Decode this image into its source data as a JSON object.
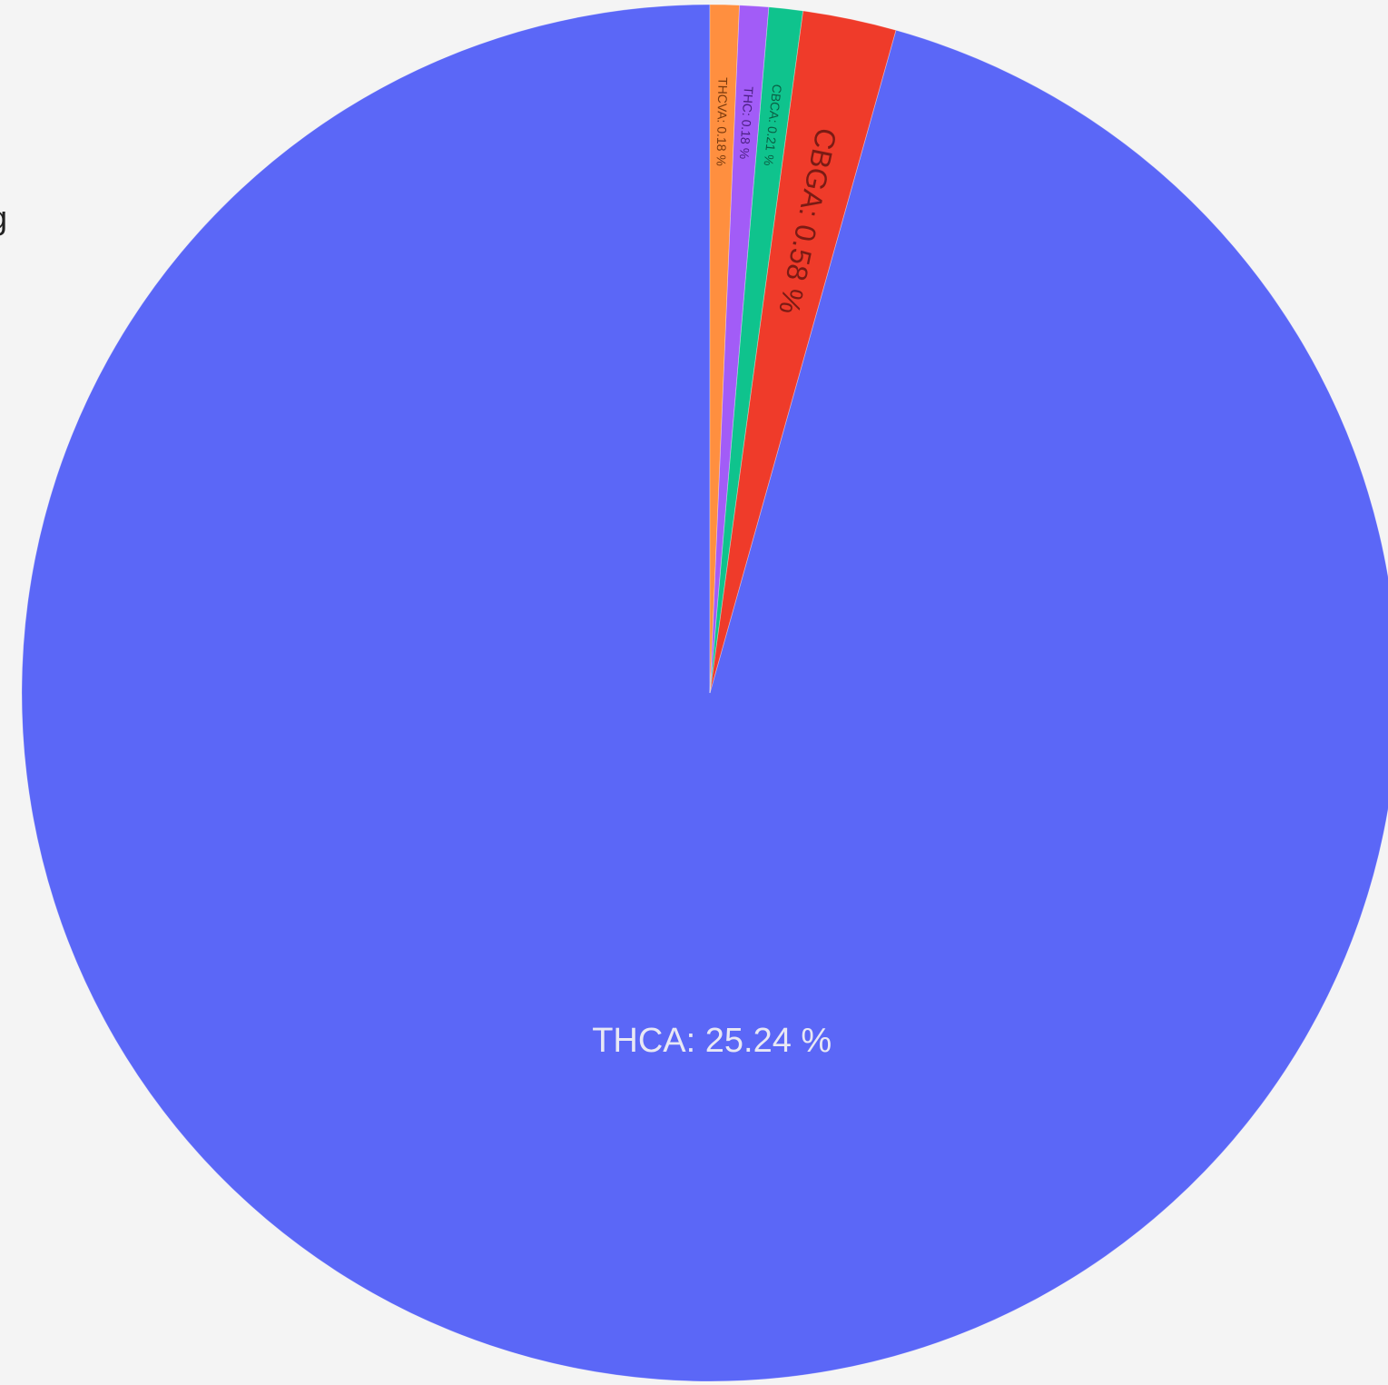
{
  "page": {
    "clipped_text": "g"
  },
  "chart_data": {
    "type": "pie",
    "categories": [
      "THCA",
      "CBGA",
      "CBCA",
      "THC",
      "THCVA"
    ],
    "values": [
      25.24,
      0.58,
      0.21,
      0.18,
      0.18
    ],
    "labels": [
      "THCA: 25.24 %",
      "CBGA: 0.58 %",
      "CBCA: 0.21 %",
      "THC: 0.18 %",
      "THCVA: 0.18 %"
    ],
    "colors": [
      "#5b67f7",
      "#ef3b2a",
      "#0fc38d",
      "#a25cf7",
      "#ff8f3f"
    ],
    "label_colors": [
      "#e8e8f4",
      "#7a1b14",
      "#0a5f44",
      "#4a1f82",
      "#7a3a0d"
    ],
    "start_angle_deg": 0,
    "direction": "counterclockwise"
  }
}
